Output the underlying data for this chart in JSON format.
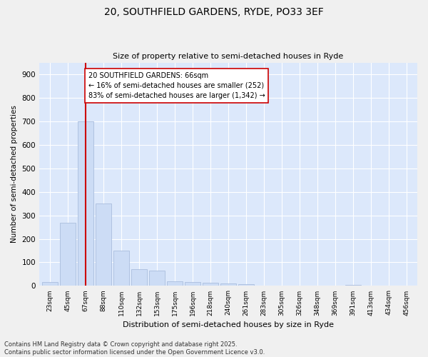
{
  "title_line1": "20, SOUTHFIELD GARDENS, RYDE, PO33 3EF",
  "title_line2": "Size of property relative to semi-detached houses in Ryde",
  "xlabel": "Distribution of semi-detached houses by size in Ryde",
  "ylabel": "Number of semi-detached properties",
  "bar_color": "#ccdcf5",
  "bar_edge_color": "#aabedd",
  "bg_color": "#dce8fb",
  "fig_color": "#f0f0f0",
  "grid_color": "#ffffff",
  "bins": [
    "23sqm",
    "45sqm",
    "67sqm",
    "88sqm",
    "110sqm",
    "132sqm",
    "153sqm",
    "175sqm",
    "196sqm",
    "218sqm",
    "240sqm",
    "261sqm",
    "283sqm",
    "305sqm",
    "326sqm",
    "348sqm",
    "369sqm",
    "391sqm",
    "413sqm",
    "434sqm",
    "456sqm"
  ],
  "values": [
    15,
    270,
    700,
    350,
    150,
    70,
    65,
    20,
    18,
    12,
    10,
    6,
    0,
    0,
    0,
    0,
    0,
    5,
    0,
    0,
    0
  ],
  "property_bin_index": 2,
  "vline_color": "#cc0000",
  "annotation_text": "20 SOUTHFIELD GARDENS: 66sqm\n← 16% of semi-detached houses are smaller (252)\n83% of semi-detached houses are larger (1,342) →",
  "annotation_box_color": "#ffffff",
  "annotation_box_edge": "#cc0000",
  "footnote": "Contains HM Land Registry data © Crown copyright and database right 2025.\nContains public sector information licensed under the Open Government Licence v3.0.",
  "ylim": [
    0,
    950
  ],
  "yticks": [
    0,
    100,
    200,
    300,
    400,
    500,
    600,
    700,
    800,
    900
  ]
}
